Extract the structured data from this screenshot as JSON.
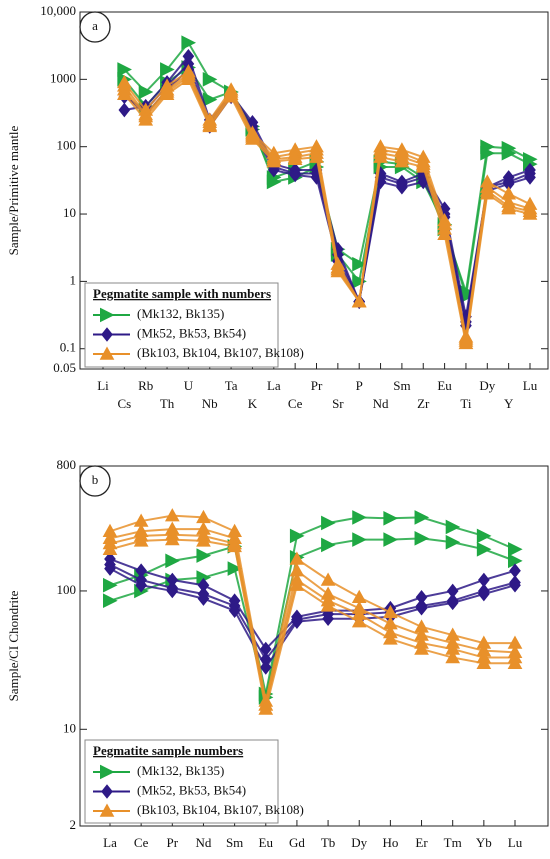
{
  "chart_data": [
    {
      "type": "line",
      "panel_label": "a",
      "ylabel": "Sample/Primitive mantle",
      "log_y": true,
      "ylim": [
        0.05,
        10000
      ],
      "yticks": [
        0.05,
        0.1,
        1,
        10,
        100,
        1000,
        {
          "value": 10000,
          "label": "10,000"
        }
      ],
      "categories": [
        "Li",
        "Cs",
        "Rb",
        "Th",
        "U",
        "Nb",
        "Ta",
        "K",
        "La",
        "Ce",
        "Pr",
        "Sr",
        "P",
        "Nd",
        "Sm",
        "Zr",
        "Eu",
        "Ti",
        "Dy",
        "Y",
        "Lu"
      ],
      "legend_title": "Pegmatite sample with numbers",
      "legend": "lower left",
      "series": [
        {
          "name": "(Mk132, Bk135)",
          "color": "#1fa843",
          "marker": "triangle-right",
          "values": [
            [
              null,
              1400,
              650,
              1400,
              3500,
              1000,
              650,
              200,
              30,
              35,
              50,
              3,
              1.8,
              60,
              55,
              35,
              6,
              0.7,
              100,
              95,
              65
            ],
            [
              null,
              1000,
              400,
              900,
              1500,
              500,
              650,
              180,
              35,
              45,
              60,
              2.5,
              1,
              50,
              50,
              30,
              7,
              0.6,
              80,
              80,
              55
            ]
          ]
        },
        {
          "name": "(Mk52, Bk53, Bk54)",
          "color": "#2e1a87",
          "marker": "diamond",
          "values": [
            [
              null,
              350,
              400,
              900,
              2200,
              250,
              600,
              230,
              55,
              45,
              45,
              3,
              0.5,
              40,
              30,
              40,
              12,
              0.3,
              25,
              35,
              45
            ],
            [
              null,
              550,
              350,
              800,
              1700,
              220,
              600,
              200,
              50,
              40,
              40,
              2.5,
              0.5,
              35,
              28,
              35,
              10,
              0.25,
              25,
              30,
              40
            ],
            [
              null,
              600,
              300,
              700,
              1400,
              200,
              550,
              180,
              45,
              38,
              35,
              2,
              0.5,
              30,
              25,
              30,
              9,
              0.22,
              22,
              28,
              35
            ]
          ]
        },
        {
          "name": "(Bk103, Bk104, Bk107, Bk108)",
          "color": "#e8902a",
          "marker": "triangle-up",
          "values": [
            [
              null,
              900,
              350,
              800,
              1300,
              250,
              700,
              160,
              80,
              90,
              100,
              1.8,
              0.5,
              100,
              90,
              70,
              8,
              0.15,
              30,
              20,
              14
            ],
            [
              null,
              800,
              300,
              700,
              1200,
              230,
              650,
              150,
              70,
              80,
              90,
              1.6,
              0.5,
              90,
              80,
              60,
              7,
              0.14,
              25,
              15,
              12
            ],
            [
              null,
              700,
              280,
              650,
              1100,
              210,
              600,
              140,
              65,
              70,
              80,
              1.5,
              0.5,
              80,
              70,
              55,
              6,
              0.13,
              22,
              13,
              11
            ],
            [
              null,
              600,
              250,
              600,
              1000,
              200,
              550,
              130,
              60,
              65,
              70,
              1.4,
              0.5,
              70,
              60,
              50,
              5,
              0.12,
              20,
              12,
              10
            ]
          ]
        }
      ]
    },
    {
      "type": "line",
      "panel_label": "b",
      "ylabel": "Sample/CI Chondrite",
      "log_y": true,
      "ylim": [
        2,
        800
      ],
      "yticks": [
        2,
        10,
        100,
        800
      ],
      "categories": [
        "La",
        "Ce",
        "Pr",
        "Nd",
        "Sm",
        "Eu",
        "Gd",
        "Tb",
        "Dy",
        "Ho",
        "Er",
        "Tm",
        "Yb",
        "Lu"
      ],
      "legend_title": "Pegmatite sample numbers",
      "legend": "lower left",
      "series": [
        {
          "name": "(Mk132, Bk135)",
          "color": "#1fa843",
          "marker": "triangle-right",
          "values": [
            [
              110,
              130,
              165,
              180,
              210,
              18,
              250,
              310,
              340,
              335,
              340,
              290,
              250,
              200
            ],
            [
              85,
              100,
              120,
              125,
              145,
              17,
              175,
              215,
              235,
              235,
              240,
              225,
              200,
              165
            ]
          ]
        },
        {
          "name": "(Mk52, Bk53, Bk54)",
          "color": "#2e1a87",
          "marker": "diamond",
          "values": [
            [
              170,
              140,
              120,
              110,
              85,
              38,
              65,
              72,
              72,
              75,
              90,
              100,
              120,
              140
            ],
            [
              155,
              120,
              105,
              95,
              78,
              32,
              62,
              68,
              68,
              70,
              78,
              85,
              100,
              115
            ],
            [
              145,
              110,
              100,
              88,
              72,
              28,
              60,
              63,
              63,
              65,
              75,
              82,
              95,
              110
            ]
          ]
        },
        {
          "name": "(Bk103, Bk104, Bk107, Bk108)",
          "color": "#e8902a",
          "marker": "triangle-up",
          "values": [
            [
              270,
              320,
              350,
              340,
              270,
              16,
              170,
              120,
              90,
              70,
              55,
              48,
              42,
              42
            ],
            [
              240,
              270,
              280,
              280,
              240,
              15,
              140,
              95,
              75,
              58,
              48,
              42,
              37,
              36
            ],
            [
              220,
              250,
              255,
              250,
              220,
              15,
              120,
              85,
              68,
              50,
              42,
              38,
              33,
              33
            ],
            [
              200,
              230,
              235,
              230,
              210,
              14,
              110,
              78,
              60,
              45,
              38,
              33,
              30,
              30
            ]
          ]
        }
      ]
    }
  ]
}
